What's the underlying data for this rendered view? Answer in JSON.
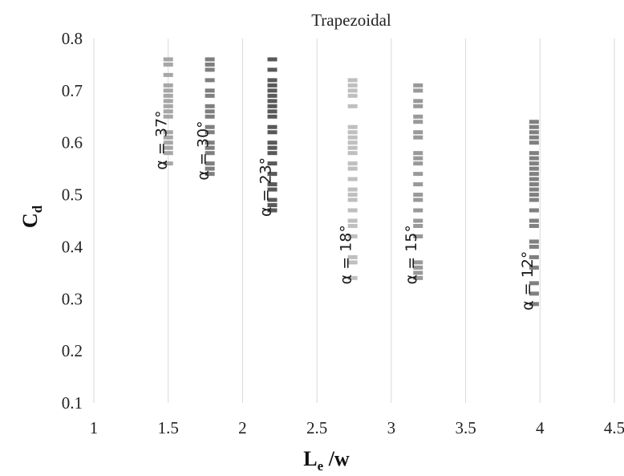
{
  "chart_data": {
    "type": "scatter",
    "title": "Trapezoidal",
    "xlabel": {
      "main": "L",
      "sub": "e",
      "rest": " /w"
    },
    "ylabel": {
      "main": "C",
      "sub": "d"
    },
    "xlim": [
      1,
      4.5
    ],
    "ylim": [
      0.1,
      0.8
    ],
    "xticks": [
      "1",
      "1.5",
      "2",
      "2.5",
      "3",
      "3.5",
      "4",
      "4.5"
    ],
    "yticks": [
      "0.1",
      "0.2",
      "0.3",
      "0.4",
      "0.5",
      "0.6",
      "0.7",
      "0.8"
    ],
    "grid": "vertical",
    "series": [
      {
        "annotation": "α = 37°",
        "color": "#a6a6a6",
        "x": 1.5,
        "y": [
          0.76,
          0.75,
          0.73,
          0.71,
          0.7,
          0.69,
          0.68,
          0.67,
          0.66,
          0.65,
          0.62,
          0.61,
          0.6,
          0.59,
          0.58,
          0.56
        ]
      },
      {
        "annotation": "α = 30°",
        "color": "#7f7f7f",
        "x": 1.78,
        "y": [
          0.76,
          0.75,
          0.74,
          0.72,
          0.7,
          0.69,
          0.67,
          0.66,
          0.65,
          0.63,
          0.62,
          0.6,
          0.59,
          0.58,
          0.56,
          0.55,
          0.54
        ]
      },
      {
        "annotation": "α = 23°",
        "color": "#595959",
        "x": 2.2,
        "y": [
          0.76,
          0.74,
          0.72,
          0.71,
          0.7,
          0.69,
          0.68,
          0.67,
          0.66,
          0.65,
          0.63,
          0.62,
          0.6,
          0.59,
          0.58,
          0.56,
          0.54,
          0.52,
          0.51,
          0.49,
          0.48,
          0.47
        ]
      },
      {
        "annotation": "α = 18°",
        "color": "#bfbfbf",
        "x": 2.74,
        "y": [
          0.72,
          0.71,
          0.7,
          0.69,
          0.67,
          0.63,
          0.62,
          0.61,
          0.6,
          0.59,
          0.58,
          0.56,
          0.55,
          0.53,
          0.51,
          0.5,
          0.49,
          0.47,
          0.45,
          0.44,
          0.42,
          0.38,
          0.37,
          0.34
        ]
      },
      {
        "annotation": "α = 15°",
        "color": "#999999",
        "x": 3.18,
        "y": [
          0.71,
          0.7,
          0.68,
          0.67,
          0.65,
          0.64,
          0.62,
          0.61,
          0.58,
          0.57,
          0.56,
          0.54,
          0.52,
          0.5,
          0.49,
          0.47,
          0.45,
          0.44,
          0.42,
          0.37,
          0.36,
          0.35,
          0.34
        ]
      },
      {
        "annotation": "α = 12°",
        "color": "#808080",
        "x": 3.96,
        "y": [
          0.64,
          0.63,
          0.62,
          0.61,
          0.6,
          0.58,
          0.57,
          0.56,
          0.55,
          0.54,
          0.53,
          0.52,
          0.51,
          0.5,
          0.49,
          0.47,
          0.45,
          0.44,
          0.41,
          0.4,
          0.38,
          0.36,
          0.33,
          0.31,
          0.29
        ]
      }
    ]
  }
}
